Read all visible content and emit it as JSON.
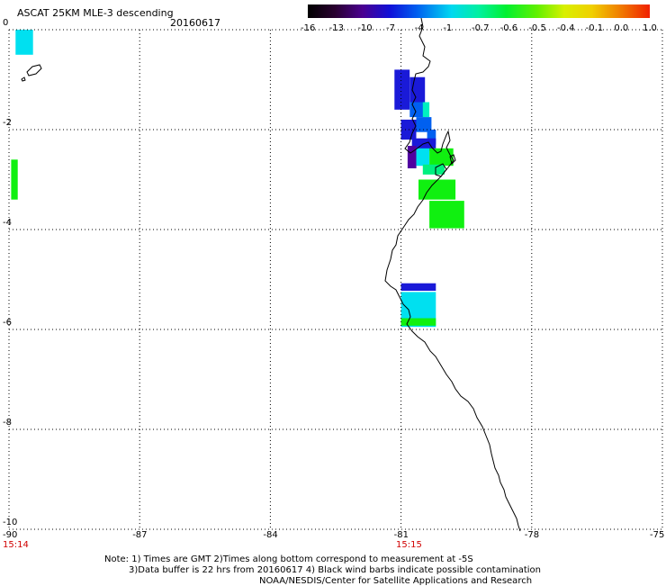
{
  "header": {
    "title": "ASCAT 25KM MLE-3 descending",
    "date": "20160617"
  },
  "colorbar": {
    "labels": [
      "-16",
      "-13",
      "-10",
      "-7",
      "-4",
      "-1",
      "-0.7",
      "-0.6",
      "-0.5",
      "-0.4",
      "-0.1",
      "0.0",
      "1.0"
    ],
    "colors": [
      "#000000",
      "#300040",
      "#500090",
      "#1010d0",
      "#0050f0",
      "#0090f0",
      "#00d0f0",
      "#00f0b0",
      "#00f040",
      "#80f000",
      "#f0f000",
      "#f0a000",
      "#f03000"
    ]
  },
  "axes": {
    "x_labels": [
      "-90",
      "-87",
      "-84",
      "-81",
      "-78",
      "-75"
    ],
    "y_labels": [
      "0",
      "-2",
      "-4",
      "-6",
      "-8",
      "-10"
    ],
    "time_labels": [
      "15:14",
      "15:15"
    ]
  },
  "map": {
    "lon_range": [
      -90,
      -75
    ],
    "lat_range": [
      -10,
      0
    ],
    "cells": [
      {
        "lon": -89.85,
        "lat": -0.25,
        "w": 0.4,
        "h": 0.5,
        "value": -1
      },
      {
        "lon": -89.95,
        "lat": -3.0,
        "w": 0.15,
        "h": 0.8,
        "value": -0.5
      },
      {
        "lon": -81.15,
        "lat": -1.2,
        "w": 0.35,
        "h": 0.8,
        "value": -7
      },
      {
        "lon": -80.8,
        "lat": -1.2,
        "w": 0.35,
        "h": 0.5,
        "value": -7
      },
      {
        "lon": -80.8,
        "lat": -1.6,
        "w": 0.35,
        "h": 0.3,
        "value": -4
      },
      {
        "lon": -80.5,
        "lat": -1.6,
        "w": 0.15,
        "h": 0.3,
        "value": -0.7
      },
      {
        "lon": -81.0,
        "lat": -2.0,
        "w": 0.35,
        "h": 0.4,
        "value": -7
      },
      {
        "lon": -80.65,
        "lat": -1.9,
        "w": 0.35,
        "h": 0.3,
        "value": -4
      },
      {
        "lon": -80.4,
        "lat": -2.15,
        "w": 0.2,
        "h": 0.3,
        "value": -4
      },
      {
        "lon": -80.75,
        "lat": -2.3,
        "w": 0.55,
        "h": 0.25,
        "value": -7
      },
      {
        "lon": -80.85,
        "lat": -2.55,
        "w": 0.2,
        "h": 0.45,
        "value": -10
      },
      {
        "lon": -80.65,
        "lat": -2.55,
        "w": 0.3,
        "h": 0.35,
        "value": -1
      },
      {
        "lon": -80.35,
        "lat": -2.55,
        "w": 0.55,
        "h": 0.35,
        "value": -0.5
      },
      {
        "lon": -80.5,
        "lat": -2.8,
        "w": 0.5,
        "h": 0.2,
        "value": -0.6
      },
      {
        "lon": -80.6,
        "lat": -3.2,
        "w": 0.85,
        "h": 0.4,
        "value": -0.5
      },
      {
        "lon": -80.35,
        "lat": -3.7,
        "w": 0.8,
        "h": 0.55,
        "value": -0.5
      },
      {
        "lon": -81.0,
        "lat": -5.15,
        "w": 0.8,
        "h": 0.15,
        "value": -7
      },
      {
        "lon": -81.0,
        "lat": -5.6,
        "w": 0.8,
        "h": 0.7,
        "value": -1
      },
      {
        "lon": -81.0,
        "lat": -5.85,
        "w": 0.8,
        "h": 0.15,
        "value": -0.5
      }
    ]
  },
  "notes": {
    "line1": "Note: 1) Times are GMT 2)Times along bottom correspond to measurement at -5S",
    "line2": "3)Data buffer is 22 hrs from 20160617 4) Black wind barbs indicate possible contamination",
    "line3": "NOAA/NESDIS/Center for Satellite Applications and Research"
  }
}
